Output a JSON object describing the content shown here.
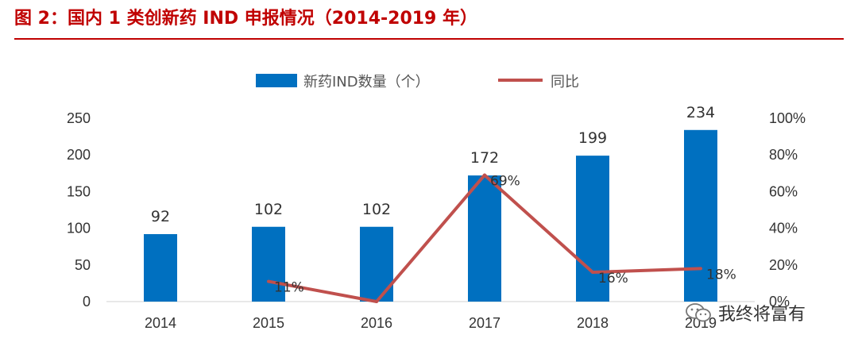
{
  "figure": {
    "title": "图 2：国内 1 类创新药 IND 申报情况（2014-2019 年）",
    "title_color": "#c00000"
  },
  "chart_data": {
    "type": "bar",
    "categories": [
      "2014",
      "2015",
      "2016",
      "2017",
      "2018",
      "2019"
    ],
    "series": [
      {
        "name": "新药IND数量（个）",
        "kind": "bar",
        "axis": "left",
        "color": "#0070c0",
        "values": [
          92,
          102,
          102,
          172,
          199,
          234
        ],
        "labels": [
          "92",
          "102",
          "102",
          "172",
          "199",
          "234"
        ]
      },
      {
        "name": "同比",
        "kind": "line",
        "axis": "right",
        "color": "#c0504d",
        "values": [
          null,
          11,
          0,
          69,
          16,
          18
        ],
        "labels": [
          "",
          "11%",
          "",
          "69%",
          "16%",
          "18%"
        ]
      }
    ],
    "y_left": {
      "min": 0,
      "max": 250,
      "ticks": [
        "0",
        "50",
        "100",
        "150",
        "200",
        "250"
      ]
    },
    "y_right": {
      "min": 0,
      "max": 100,
      "ticks": [
        "0%",
        "20%",
        "40%",
        "60%",
        "80%",
        "100%"
      ]
    },
    "grid": false,
    "legend": "top-center"
  },
  "watermark": {
    "text": "我终将富有",
    "icon": "wechat-icon"
  }
}
